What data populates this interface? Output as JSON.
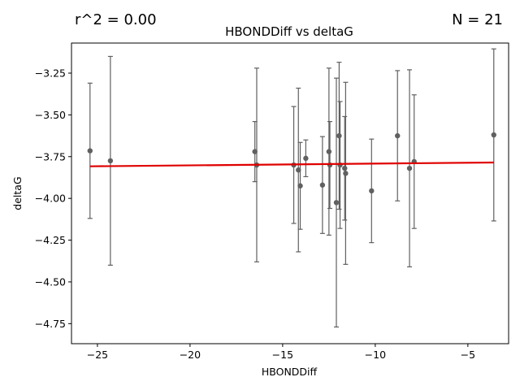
{
  "annotations": {
    "r2": "r^2 = 0.00",
    "n": "N = 21"
  },
  "colors": {
    "points": "#606060",
    "errorbars": "#606060",
    "fit": "#e00000",
    "axes": "#000000"
  },
  "chart_data": {
    "type": "scatter",
    "title": "HBONDDiff vs deltaG",
    "xlabel": "HBONDDiff",
    "ylabel": "deltaG",
    "xlim": [
      -26.4,
      -2.8
    ],
    "ylim": [
      -4.87,
      -3.07
    ],
    "xticks": [
      -25,
      -20,
      -15,
      -10,
      -5
    ],
    "xtick_labels": [
      "−25",
      "−20",
      "−15",
      "−10",
      "−5"
    ],
    "yticks": [
      -4.75,
      -4.5,
      -4.25,
      -4.0,
      -3.75,
      -3.5,
      -3.25
    ],
    "ytick_labels": [
      "−4.75",
      "−4.50",
      "−4.25",
      "−4.00",
      "−3.75",
      "−3.50",
      "−3.25"
    ],
    "points": [
      {
        "x": -25.4,
        "y": -3.715,
        "err": 0.405
      },
      {
        "x": -24.3,
        "y": -3.775,
        "err": 0.625
      },
      {
        "x": -16.5,
        "y": -3.72,
        "err": 0.18
      },
      {
        "x": -16.4,
        "y": -3.8,
        "err": 0.58
      },
      {
        "x": -14.4,
        "y": -3.8,
        "err": 0.35
      },
      {
        "x": -14.15,
        "y": -3.83,
        "err": 0.49
      },
      {
        "x": -14.05,
        "y": -3.925,
        "err": 0.26
      },
      {
        "x": -13.75,
        "y": -3.76,
        "err": 0.11
      },
      {
        "x": -12.85,
        "y": -3.92,
        "err": 0.29
      },
      {
        "x": -12.5,
        "y": -3.72,
        "err": 0.5
      },
      {
        "x": -12.45,
        "y": -3.8,
        "err": 0.26
      },
      {
        "x": -12.1,
        "y": -4.025,
        "err": 0.745
      },
      {
        "x": -11.95,
        "y": -3.625,
        "err": 0.44
      },
      {
        "x": -11.9,
        "y": -3.8,
        "err": 0.38
      },
      {
        "x": -11.65,
        "y": -3.82,
        "err": 0.31
      },
      {
        "x": -11.6,
        "y": -3.85,
        "err": 0.545
      },
      {
        "x": -10.2,
        "y": -3.955,
        "err": 0.31
      },
      {
        "x": -8.8,
        "y": -3.625,
        "err": 0.39
      },
      {
        "x": -8.15,
        "y": -3.82,
        "err": 0.59
      },
      {
        "x": -7.9,
        "y": -3.78,
        "err": 0.4
      },
      {
        "x": -3.6,
        "y": -3.62,
        "err": 0.515
      }
    ],
    "fit_line": {
      "x": [
        -25.4,
        -3.6
      ],
      "y": [
        -3.808,
        -3.785
      ]
    },
    "grid": false,
    "legend": false
  }
}
